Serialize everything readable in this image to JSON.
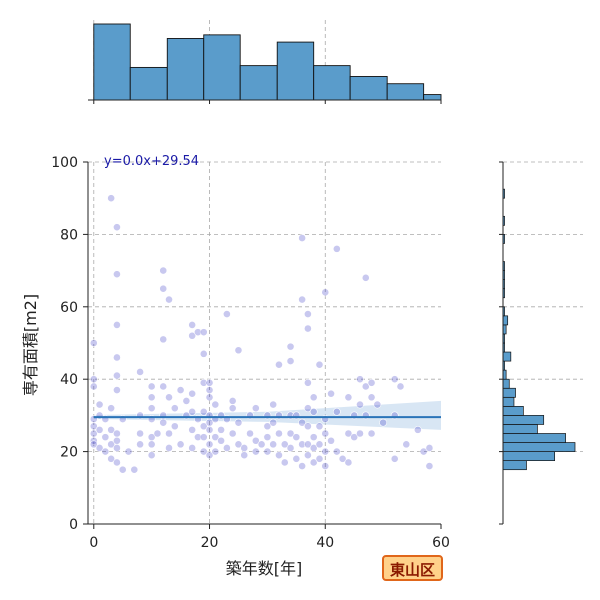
{
  "district_label": "東山区",
  "colors": {
    "bar": "#5a9ccb",
    "point": "#3b3bc4",
    "fit": "#2a74b8",
    "band": "#a9c8e6",
    "grid": "#aaaaaa",
    "badge_bg": "#ffd18a",
    "badge_border": "#e0661a"
  },
  "chart_data": {
    "type": "scatter",
    "title": "",
    "xlabel": "築年数[年]",
    "ylabel": "専有面積[m2]",
    "xlim": [
      -1,
      60
    ],
    "ylim": [
      0,
      100
    ],
    "x_ticks": [
      0,
      20,
      40,
      60
    ],
    "y_ticks": [
      0,
      20,
      40,
      60,
      80,
      100
    ],
    "grid": true,
    "regression": {
      "label": "y=0.0x+29.54",
      "slope": 0.0,
      "intercept": 29.54,
      "x_range": [
        0,
        60
      ],
      "ci_low": [
        29.0,
        28.2,
        26.0
      ],
      "ci_high": [
        30.1,
        31.0,
        34.0
      ]
    },
    "points": [
      {
        "x": 0,
        "y": 40
      },
      {
        "x": 0,
        "y": 38
      },
      {
        "x": 0,
        "y": 29
      },
      {
        "x": 0,
        "y": 27
      },
      {
        "x": 0,
        "y": 25
      },
      {
        "x": 0,
        "y": 23
      },
      {
        "x": 0,
        "y": 22
      },
      {
        "x": 0,
        "y": 50
      },
      {
        "x": 1,
        "y": 33
      },
      {
        "x": 1,
        "y": 30
      },
      {
        "x": 1,
        "y": 26
      },
      {
        "x": 1,
        "y": 21
      },
      {
        "x": 2,
        "y": 24
      },
      {
        "x": 2,
        "y": 20
      },
      {
        "x": 2,
        "y": 29
      },
      {
        "x": 3,
        "y": 90
      },
      {
        "x": 3,
        "y": 26
      },
      {
        "x": 3,
        "y": 22
      },
      {
        "x": 3,
        "y": 32
      },
      {
        "x": 3,
        "y": 18
      },
      {
        "x": 4,
        "y": 82
      },
      {
        "x": 4,
        "y": 69
      },
      {
        "x": 4,
        "y": 55
      },
      {
        "x": 4,
        "y": 46
      },
      {
        "x": 4,
        "y": 41
      },
      {
        "x": 4,
        "y": 37
      },
      {
        "x": 4,
        "y": 25
      },
      {
        "x": 4,
        "y": 23
      },
      {
        "x": 4,
        "y": 21
      },
      {
        "x": 4,
        "y": 17
      },
      {
        "x": 5,
        "y": 15
      },
      {
        "x": 5,
        "y": 29
      },
      {
        "x": 6,
        "y": 20
      },
      {
        "x": 7,
        "y": 15
      },
      {
        "x": 8,
        "y": 42
      },
      {
        "x": 8,
        "y": 30
      },
      {
        "x": 8,
        "y": 25
      },
      {
        "x": 8,
        "y": 22
      },
      {
        "x": 10,
        "y": 38
      },
      {
        "x": 10,
        "y": 35
      },
      {
        "x": 10,
        "y": 32
      },
      {
        "x": 10,
        "y": 29
      },
      {
        "x": 10,
        "y": 24
      },
      {
        "x": 10,
        "y": 22
      },
      {
        "x": 10,
        "y": 19
      },
      {
        "x": 11,
        "y": 25
      },
      {
        "x": 12,
        "y": 70
      },
      {
        "x": 12,
        "y": 65
      },
      {
        "x": 12,
        "y": 51
      },
      {
        "x": 12,
        "y": 38
      },
      {
        "x": 12,
        "y": 30
      },
      {
        "x": 12,
        "y": 28
      },
      {
        "x": 13,
        "y": 62
      },
      {
        "x": 13,
        "y": 35
      },
      {
        "x": 13,
        "y": 25
      },
      {
        "x": 13,
        "y": 21
      },
      {
        "x": 14,
        "y": 32
      },
      {
        "x": 14,
        "y": 27
      },
      {
        "x": 15,
        "y": 37
      },
      {
        "x": 15,
        "y": 22
      },
      {
        "x": 16,
        "y": 34
      },
      {
        "x": 16,
        "y": 30
      },
      {
        "x": 17,
        "y": 55
      },
      {
        "x": 17,
        "y": 52
      },
      {
        "x": 17,
        "y": 36
      },
      {
        "x": 17,
        "y": 31
      },
      {
        "x": 17,
        "y": 26
      },
      {
        "x": 17,
        "y": 21
      },
      {
        "x": 18,
        "y": 53
      },
      {
        "x": 18,
        "y": 29
      },
      {
        "x": 18,
        "y": 24
      },
      {
        "x": 19,
        "y": 53
      },
      {
        "x": 19,
        "y": 47
      },
      {
        "x": 19,
        "y": 39
      },
      {
        "x": 19,
        "y": 31
      },
      {
        "x": 19,
        "y": 27
      },
      {
        "x": 19,
        "y": 24
      },
      {
        "x": 19,
        "y": 20
      },
      {
        "x": 20,
        "y": 39
      },
      {
        "x": 20,
        "y": 37
      },
      {
        "x": 20,
        "y": 35
      },
      {
        "x": 20,
        "y": 30
      },
      {
        "x": 20,
        "y": 28
      },
      {
        "x": 20,
        "y": 26
      },
      {
        "x": 20,
        "y": 22
      },
      {
        "x": 20,
        "y": 19
      },
      {
        "x": 21,
        "y": 33
      },
      {
        "x": 21,
        "y": 29
      },
      {
        "x": 21,
        "y": 24
      },
      {
        "x": 21,
        "y": 20
      },
      {
        "x": 22,
        "y": 30
      },
      {
        "x": 22,
        "y": 26
      },
      {
        "x": 22,
        "y": 23
      },
      {
        "x": 23,
        "y": 58
      },
      {
        "x": 23,
        "y": 29
      },
      {
        "x": 23,
        "y": 21
      },
      {
        "x": 24,
        "y": 34
      },
      {
        "x": 24,
        "y": 32
      },
      {
        "x": 24,
        "y": 25
      },
      {
        "x": 25,
        "y": 48
      },
      {
        "x": 25,
        "y": 28
      },
      {
        "x": 25,
        "y": 22
      },
      {
        "x": 26,
        "y": 21
      },
      {
        "x": 26,
        "y": 19
      },
      {
        "x": 27,
        "y": 30
      },
      {
        "x": 27,
        "y": 25
      },
      {
        "x": 28,
        "y": 32
      },
      {
        "x": 28,
        "y": 23
      },
      {
        "x": 28,
        "y": 20
      },
      {
        "x": 29,
        "y": 22
      },
      {
        "x": 30,
        "y": 30
      },
      {
        "x": 30,
        "y": 27
      },
      {
        "x": 30,
        "y": 24
      },
      {
        "x": 30,
        "y": 20
      },
      {
        "x": 31,
        "y": 33
      },
      {
        "x": 31,
        "y": 28
      },
      {
        "x": 31,
        "y": 22
      },
      {
        "x": 32,
        "y": 44
      },
      {
        "x": 32,
        "y": 30
      },
      {
        "x": 32,
        "y": 25
      },
      {
        "x": 32,
        "y": 19
      },
      {
        "x": 33,
        "y": 22
      },
      {
        "x": 33,
        "y": 17
      },
      {
        "x": 34,
        "y": 49
      },
      {
        "x": 34,
        "y": 45
      },
      {
        "x": 34,
        "y": 30
      },
      {
        "x": 34,
        "y": 25
      },
      {
        "x": 34,
        "y": 21
      },
      {
        "x": 35,
        "y": 30
      },
      {
        "x": 35,
        "y": 24
      },
      {
        "x": 35,
        "y": 18
      },
      {
        "x": 36,
        "y": 79
      },
      {
        "x": 36,
        "y": 62
      },
      {
        "x": 36,
        "y": 28
      },
      {
        "x": 36,
        "y": 22
      },
      {
        "x": 36,
        "y": 16
      },
      {
        "x": 37,
        "y": 58
      },
      {
        "x": 37,
        "y": 54
      },
      {
        "x": 37,
        "y": 39
      },
      {
        "x": 37,
        "y": 32
      },
      {
        "x": 37,
        "y": 27
      },
      {
        "x": 37,
        "y": 22
      },
      {
        "x": 37,
        "y": 19
      },
      {
        "x": 38,
        "y": 35
      },
      {
        "x": 38,
        "y": 31
      },
      {
        "x": 38,
        "y": 24
      },
      {
        "x": 38,
        "y": 21
      },
      {
        "x": 38,
        "y": 17
      },
      {
        "x": 39,
        "y": 44
      },
      {
        "x": 39,
        "y": 27
      },
      {
        "x": 39,
        "y": 22
      },
      {
        "x": 39,
        "y": 18
      },
      {
        "x": 40,
        "y": 64
      },
      {
        "x": 40,
        "y": 29
      },
      {
        "x": 40,
        "y": 25
      },
      {
        "x": 40,
        "y": 20
      },
      {
        "x": 40,
        "y": 16
      },
      {
        "x": 41,
        "y": 36
      },
      {
        "x": 41,
        "y": 23
      },
      {
        "x": 42,
        "y": 76
      },
      {
        "x": 42,
        "y": 31
      },
      {
        "x": 42,
        "y": 20
      },
      {
        "x": 43,
        "y": 18
      },
      {
        "x": 44,
        "y": 35
      },
      {
        "x": 44,
        "y": 25
      },
      {
        "x": 44,
        "y": 17
      },
      {
        "x": 45,
        "y": 30
      },
      {
        "x": 45,
        "y": 24
      },
      {
        "x": 46,
        "y": 40
      },
      {
        "x": 46,
        "y": 33
      },
      {
        "x": 46,
        "y": 25
      },
      {
        "x": 47,
        "y": 68
      },
      {
        "x": 47,
        "y": 38
      },
      {
        "x": 47,
        "y": 30
      },
      {
        "x": 48,
        "y": 39
      },
      {
        "x": 48,
        "y": 35
      },
      {
        "x": 48,
        "y": 25
      },
      {
        "x": 49,
        "y": 33
      },
      {
        "x": 50,
        "y": 28
      },
      {
        "x": 52,
        "y": 40
      },
      {
        "x": 52,
        "y": 30
      },
      {
        "x": 52,
        "y": 18
      },
      {
        "x": 53,
        "y": 38
      },
      {
        "x": 54,
        "y": 22
      },
      {
        "x": 56,
        "y": 26
      },
      {
        "x": 57,
        "y": 20
      },
      {
        "x": 58,
        "y": 16
      },
      {
        "x": 58,
        "y": 21
      }
    ],
    "x_hist": {
      "bin_edges": [
        0,
        6.3,
        12.7,
        19,
        25.3,
        31.7,
        38,
        44.3,
        50.7,
        57,
        63.3
      ],
      "counts": [
        42,
        18,
        34,
        36,
        19,
        32,
        19,
        13,
        9,
        3
      ]
    },
    "y_hist": {
      "bin_edges": [
        15,
        17.5,
        20,
        22.5,
        25,
        27.5,
        30,
        32.5,
        35,
        37.5,
        40,
        42.5,
        45,
        47.5,
        50,
        52.5,
        55,
        57.5,
        60,
        62.5,
        65,
        67.5,
        70,
        72.5,
        75,
        77.5,
        80,
        82.5,
        85,
        87.5,
        90,
        92.5
      ],
      "counts": [
        15,
        33,
        46,
        40,
        22,
        26,
        13,
        7,
        8,
        4,
        2,
        1,
        5,
        1,
        1,
        2,
        3,
        1,
        0,
        1,
        1,
        1,
        1,
        0,
        0,
        1,
        0,
        1,
        0,
        0,
        1
      ]
    }
  }
}
